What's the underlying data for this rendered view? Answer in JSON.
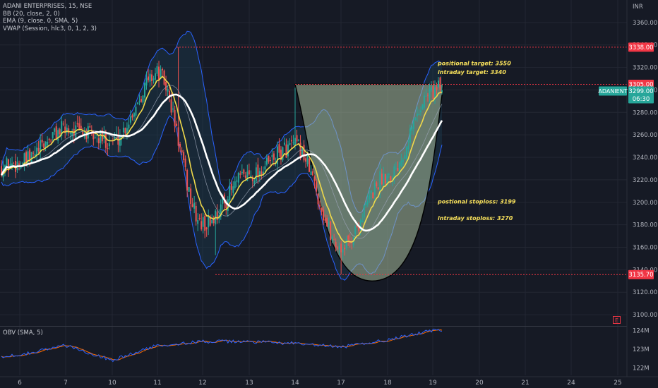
{
  "legend": {
    "symbol_line": "ADANI ENTERPRISES, 15, NSE",
    "bb_line": "BB (20, close, 2, 0)",
    "ema_line": "EMA (9, close, 0, SMA, 5)",
    "vwap_line": "VWAP (Session, hlc3, 0, 1, 2, 3)",
    "obv_line": "OBV (SMA, 5)",
    "e_badge": "E"
  },
  "colors": {
    "background": "#161a25",
    "grid": "#232733",
    "bullish": "#26a69a",
    "bearish": "#ef5350",
    "bb_band": "#2962ff",
    "bb_fill": "#1b3a4e",
    "ema": "#f0d94a",
    "vwap": "#ffffff",
    "pattern_fill": "#a8bb9a",
    "dotted_level": "#f23645",
    "last_price_label": "#26a69a",
    "annotation_text": "#f7e05b",
    "obv": "#2962ff",
    "obv_sma": "#ff6d00"
  },
  "chart_data": [
    {
      "type": "candlestick",
      "symbol": "ADANIENT",
      "title": "ADANI ENTERPRISES, 15, NSE",
      "currency": "INR",
      "ylim": [
        3090,
        3380
      ],
      "y_ticks": [
        3100,
        3120,
        3140,
        3160,
        3180,
        3200,
        3220,
        3240,
        3260,
        3280,
        3300,
        3320,
        3340,
        3360
      ],
      "x_ticks": [
        "6",
        "7",
        "10",
        "11",
        "12",
        "13",
        "14",
        "17",
        "18",
        "19",
        "20",
        "21",
        "24",
        "25"
      ],
      "price_path": [
        {
          "session": "6",
          "close": 3235
        },
        {
          "session": "7",
          "close": 3265
        },
        {
          "session": "10",
          "close": 3255
        },
        {
          "session": "11",
          "close": 3315
        },
        {
          "session": "12",
          "close": 3180
        },
        {
          "session": "13",
          "close": 3225
        },
        {
          "session": "14",
          "close": 3250
        },
        {
          "session": "17",
          "close": 3160
        },
        {
          "session": "18",
          "close": 3225
        },
        {
          "session": "19",
          "close": 3299
        }
      ],
      "levels": [
        {
          "label": "3338.00",
          "value": 3338.0,
          "color": "#f23645"
        },
        {
          "label": "3305.00",
          "value": 3305.0,
          "color": "#f23645"
        },
        {
          "label": "3135.70",
          "value": 3135.7,
          "color": "#f23645"
        }
      ],
      "last_price": {
        "symbol_tag": "ADANIENT",
        "value": "3299.00",
        "countdown": "06:30"
      },
      "annotations": [
        {
          "text": "positional target: 3550",
          "price": 3322
        },
        {
          "text": "intraday target: 3340",
          "price": 3314
        },
        {
          "text": "postional stoploss: 3199",
          "price": 3199
        },
        {
          "text": "intraday stoploss: 3270",
          "price": 3184
        }
      ],
      "pattern": {
        "type": "cup",
        "rim_price": 3305,
        "bottom_price": 3130,
        "from_session": "14",
        "to_session": "19"
      }
    },
    {
      "type": "line",
      "title": "OBV (SMA, 5)",
      "ylim": [
        121.6,
        124.2
      ],
      "y_ticks": [
        {
          "label": "122M",
          "value": 122
        },
        {
          "label": "123M",
          "value": 123
        },
        {
          "label": "124M",
          "value": 124
        }
      ],
      "series": [
        {
          "name": "OBV",
          "values_by_session": [
            {
              "session": "6",
              "value": 122.7
            },
            {
              "session": "7",
              "value": 123.2
            },
            {
              "session": "10",
              "value": 122.4
            },
            {
              "session": "11",
              "value": 123.2
            },
            {
              "session": "12",
              "value": 123.4
            },
            {
              "session": "13",
              "value": 123.4
            },
            {
              "session": "14",
              "value": 123.3
            },
            {
              "session": "17",
              "value": 123.1
            },
            {
              "session": "18",
              "value": 123.5
            },
            {
              "session": "19",
              "value": 124.0
            }
          ]
        }
      ]
    }
  ]
}
